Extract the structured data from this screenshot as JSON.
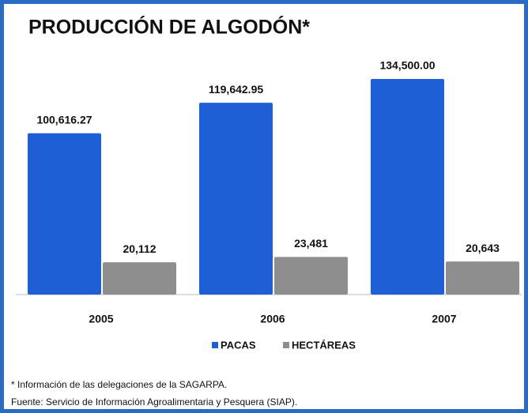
{
  "chart_data": {
    "type": "bar",
    "title": "PRODUCCIÓN DE ALGODÓN*",
    "categories": [
      "2005",
      "2006",
      "2007"
    ],
    "series": [
      {
        "name": "PACAS",
        "color": "#1f5fd6",
        "values": [
          100616.27,
          119642.95,
          134500.0
        ],
        "value_labels": [
          "100,616.27",
          "119,642.95",
          "134,500.00"
        ]
      },
      {
        "name": "HECTÁREAS",
        "color": "#8e8e8e",
        "values": [
          20112,
          23481,
          20643
        ],
        "value_labels": [
          "20,112",
          "23,481",
          "20,643"
        ]
      }
    ],
    "notes": [
      "* Información de las delegaciones de la SAGARPA.",
      "Fuente: Servicio de Información Agroalimentaria y Pesquera (SIAP)."
    ]
  }
}
